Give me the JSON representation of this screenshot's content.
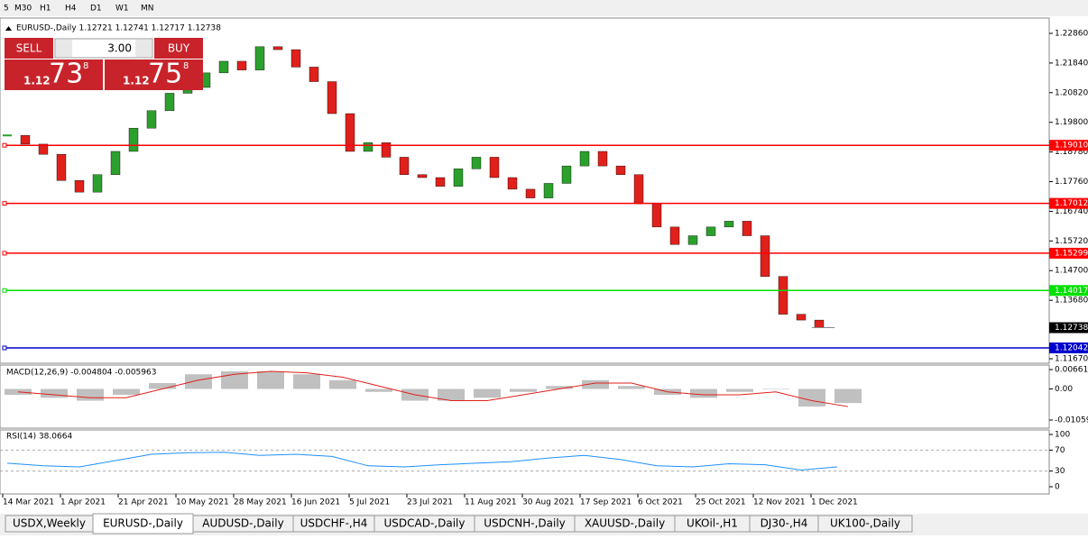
{
  "toolbar": {
    "timeframes": [
      "5",
      "M30",
      "H1",
      "H4",
      "D1",
      "W1",
      "MN"
    ]
  },
  "chart": {
    "header": "EURUSD-,Daily  1.12721 1.12741 1.12717 1.12738"
  },
  "trade_panel": {
    "sell": "SELL",
    "buy": "BUY",
    "volume": "3.00",
    "sell_big": "1.12",
    "sell_pips": "73",
    "sell_frac": "8",
    "buy_big": "1.12",
    "buy_pips": "75",
    "buy_frac": "8"
  },
  "price_axis": {
    "ticks": [
      {
        "value": 1.2286,
        "label": "1.22860"
      },
      {
        "value": 1.2184,
        "label": "1.21840"
      },
      {
        "value": 1.2082,
        "label": "1.20820"
      },
      {
        "value": 1.198,
        "label": "1.19800"
      },
      {
        "value": 1.1878,
        "label": "1.18780"
      },
      {
        "value": 1.1776,
        "label": "1.17760"
      },
      {
        "value": 1.1674,
        "label": "1.16740"
      },
      {
        "value": 1.1572,
        "label": "1.15720"
      },
      {
        "value": 1.147,
        "label": "1.14700"
      },
      {
        "value": 1.1368,
        "label": "1.13680"
      },
      {
        "value": 1.1167,
        "label": "1.11670"
      }
    ]
  },
  "current_price": {
    "value": 1.12738,
    "label": "1.12738"
  },
  "levels": [
    {
      "value": 1.1901,
      "label": "1.19010",
      "color": "#ff0000"
    },
    {
      "value": 1.17012,
      "label": "1.17012",
      "color": "#ff0000"
    },
    {
      "value": 1.15299,
      "label": "1.15299",
      "color": "#ff0000"
    },
    {
      "value": 1.14017,
      "label": "1.14017",
      "color": "#00e000"
    },
    {
      "value": 1.12042,
      "label": "1.12042",
      "color": "#0000cc"
    }
  ],
  "closes": [
    1.1935,
    1.1905,
    1.187,
    1.178,
    1.174,
    1.18,
    1.188,
    1.196,
    1.202,
    1.208,
    1.21,
    1.215,
    1.219,
    1.216,
    1.224,
    1.223,
    1.217,
    1.212,
    1.201,
    1.188,
    1.191,
    1.186,
    1.18,
    1.179,
    1.176,
    1.182,
    1.186,
    1.179,
    1.175,
    1.172,
    1.177,
    1.183,
    1.188,
    1.183,
    1.18,
    1.17,
    1.162,
    1.156,
    1.159,
    1.162,
    1.164,
    1.159,
    1.145,
    1.132,
    1.13,
    1.1274
  ],
  "macd": {
    "label": "MACD(12,26,9) -0.004804 -0.005963",
    "ticks": [
      0.006611,
      {
        "value": 0,
        "label": "0.00"
      },
      {
        "value": -0.01059,
        "label": "-0.01059"
      }
    ],
    "histogram": [
      -0.002,
      -0.003,
      -0.004,
      -0.002,
      0.002,
      0.005,
      0.006,
      0.006,
      0.005,
      0.003,
      -0.001,
      -0.004,
      -0.004,
      -0.003,
      -0.001,
      0.001,
      0.003,
      0.001,
      -0.002,
      -0.003,
      -0.001,
      0,
      -0.006,
      -0.0048
    ],
    "signal": [
      -0.001,
      -0.002,
      -0.003,
      -0.003,
      0,
      0.003,
      0.005,
      0.006,
      0.0055,
      0.004,
      0.001,
      -0.002,
      -0.004,
      -0.004,
      -0.002,
      0,
      0.002,
      0.002,
      -0.001,
      -0.002,
      -0.002,
      -0.001,
      -0.004,
      -0.006
    ]
  },
  "rsi": {
    "label": "RSI(14) 38.0664",
    "ticks": [
      100,
      70,
      30,
      0
    ],
    "values": [
      45,
      40,
      38,
      50,
      62,
      65,
      66,
      60,
      62,
      58,
      40,
      38,
      42,
      45,
      48,
      55,
      60,
      52,
      40,
      38,
      44,
      42,
      32,
      38
    ]
  },
  "date_axis": {
    "labels": [
      "14 Mar 2021",
      "1 Apr 2021",
      "21 Apr 2021",
      "10 May 2021",
      "28 May 2021",
      "16 Jun 2021",
      "5 Jul 2021",
      "23 Jul 2021",
      "11 Aug 2021",
      "30 Aug 2021",
      "17 Sep 2021",
      "6 Oct 2021",
      "25 Oct 2021",
      "12 Nov 2021",
      "1 Dec 2021"
    ]
  },
  "tabs": [
    "USDX,Weekly",
    "EURUSD-,Daily",
    "AUDUSD-,Daily",
    "USDCHF-,H4",
    "USDCAD-,Daily",
    "USDCNH-,Daily",
    "XAUUSD-,Daily",
    "UKOil-,H1",
    "DJ30-,H4",
    "UK100-,Daily"
  ]
}
